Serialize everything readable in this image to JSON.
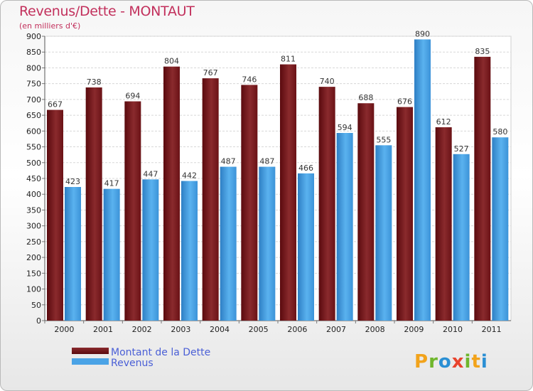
{
  "chart_data": {
    "type": "bar",
    "title": "Revenus/Dette - MONTAUT",
    "subtitle": "(en milliers d'€)",
    "categories": [
      "2000",
      "2001",
      "2002",
      "2003",
      "2004",
      "2005",
      "2006",
      "2007",
      "2008",
      "2009",
      "2010",
      "2011"
    ],
    "series": [
      {
        "name": "Montant de la Dette",
        "color": "#7a1a1e",
        "values": [
          667,
          738,
          694,
          804,
          767,
          746,
          811,
          740,
          688,
          676,
          612,
          835
        ]
      },
      {
        "name": "Revenus",
        "color": "#4aa3e6",
        "values": [
          423,
          417,
          447,
          442,
          487,
          487,
          466,
          594,
          555,
          890,
          527,
          580
        ]
      }
    ],
    "ylim": [
      0,
      900
    ],
    "ytick_step": 50,
    "grid": true,
    "legend": "bottom-left"
  },
  "logo": {
    "letters": [
      "P",
      "r",
      "o",
      "x",
      "i",
      "t",
      "i"
    ],
    "colors": [
      "#f2a31b",
      "#6fb62c",
      "#2a8fd4",
      "#e8432d",
      "#6fb62c",
      "#f2a31b",
      "#2a8fd4"
    ]
  }
}
